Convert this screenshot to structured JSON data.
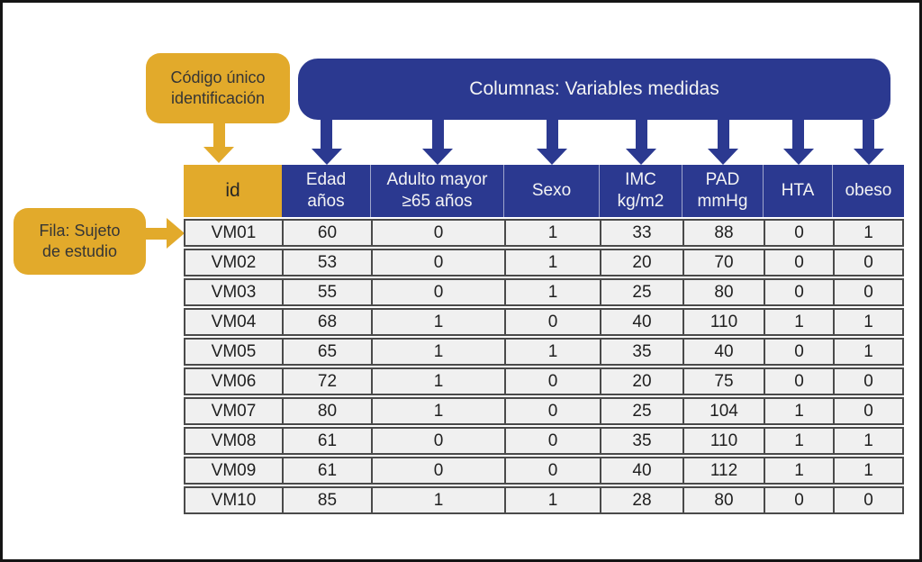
{
  "banner": {
    "label": "Columnas: Variables medidas"
  },
  "callouts": {
    "code": {
      "line1": "Código único",
      "line2": "identificación"
    },
    "row": {
      "line1": "Fila: Sujeto",
      "line2": "de estudio"
    }
  },
  "table": {
    "columns": [
      {
        "key": "id",
        "line1": "id",
        "line2": ""
      },
      {
        "key": "edad",
        "line1": "Edad",
        "line2": "años"
      },
      {
        "key": "adulto-mayor",
        "line1": "Adulto mayor",
        "line2": "≥65 años"
      },
      {
        "key": "sexo",
        "line1": "Sexo",
        "line2": ""
      },
      {
        "key": "imc",
        "line1": "IMC",
        "line2": "kg/m2"
      },
      {
        "key": "pad",
        "line1": "PAD",
        "line2": "mmHg"
      },
      {
        "key": "hta",
        "line1": "HTA",
        "line2": ""
      },
      {
        "key": "obeso",
        "line1": "obeso",
        "line2": ""
      }
    ],
    "rows": [
      {
        "id": "VM01",
        "values": [
          "60",
          "0",
          "1",
          "33",
          "88",
          "0",
          "1"
        ]
      },
      {
        "id": "VM02",
        "values": [
          "53",
          "0",
          "1",
          "20",
          "70",
          "0",
          "0"
        ]
      },
      {
        "id": "VM03",
        "values": [
          "55",
          "0",
          "1",
          "25",
          "80",
          "0",
          "0"
        ]
      },
      {
        "id": "VM04",
        "values": [
          "68",
          "1",
          "0",
          "40",
          "110",
          "1",
          "1"
        ]
      },
      {
        "id": "VM05",
        "values": [
          "65",
          "1",
          "1",
          "35",
          "40",
          "0",
          "1"
        ]
      },
      {
        "id": "VM06",
        "values": [
          "72",
          "1",
          "0",
          "20",
          "75",
          "0",
          "0"
        ]
      },
      {
        "id": "VM07",
        "values": [
          "80",
          "1",
          "0",
          "25",
          "104",
          "1",
          "0"
        ]
      },
      {
        "id": "VM08",
        "values": [
          "61",
          "0",
          "0",
          "35",
          "110",
          "1",
          "1"
        ]
      },
      {
        "id": "VM09",
        "values": [
          "61",
          "0",
          "0",
          "40",
          "112",
          "1",
          "1"
        ]
      },
      {
        "id": "VM10",
        "values": [
          "85",
          "1",
          "1",
          "28",
          "80",
          "0",
          "0"
        ]
      }
    ]
  },
  "colors": {
    "blue": "#2B3990",
    "yellow": "#E2AA2B",
    "row_bg": "#F0F0F0",
    "border": "#4A4A4A"
  }
}
